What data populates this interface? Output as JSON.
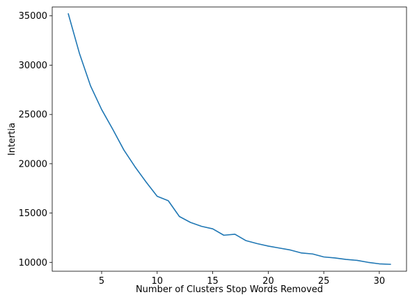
{
  "chart_data": {
    "type": "line",
    "title": "",
    "xlabel": "Number of Clusters Stop Words Removed",
    "ylabel": "Intertia",
    "xlim": [
      0.55,
      32.45
    ],
    "ylim": [
      9100,
      35900
    ],
    "xticks": [
      5,
      10,
      15,
      20,
      25,
      30
    ],
    "yticks": [
      10000,
      15000,
      20000,
      25000,
      30000,
      35000
    ],
    "grid": false,
    "legend": "none",
    "series": [
      {
        "color": "#1f77b4",
        "x": [
          2,
          3,
          4,
          5,
          6,
          7,
          8,
          9,
          10,
          11,
          12,
          13,
          14,
          15,
          16,
          17,
          18,
          19,
          20,
          21,
          22,
          23,
          24,
          25,
          26,
          27,
          28,
          29,
          30,
          31
        ],
        "y": [
          35200,
          31200,
          27900,
          25500,
          23500,
          21400,
          19700,
          18150,
          16700,
          16250,
          14650,
          14050,
          13650,
          13400,
          12750,
          12850,
          12200,
          11900,
          11650,
          11450,
          11250,
          10950,
          10850,
          10550,
          10450,
          10300,
          10200,
          10000,
          9850,
          9800
        ]
      }
    ]
  }
}
